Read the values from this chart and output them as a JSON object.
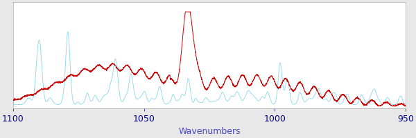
{
  "xlabel": "Wavenumbers",
  "xlabel_color": "#4444cc",
  "xlim": [
    1100,
    950
  ],
  "ylim": [
    -0.02,
    1.05
  ],
  "background_color": "#e8e8e8",
  "plot_bg_color": "#ffffff",
  "cyan_color": "#88d8e8",
  "red_color": "#cc0000",
  "linewidth_cyan": 0.6,
  "linewidth_red": 0.7,
  "tick_label_color": "#000088",
  "xticks": [
    1100,
    1050,
    1000,
    950
  ],
  "figsize": [
    6.0,
    2.0
  ],
  "dpi": 100
}
